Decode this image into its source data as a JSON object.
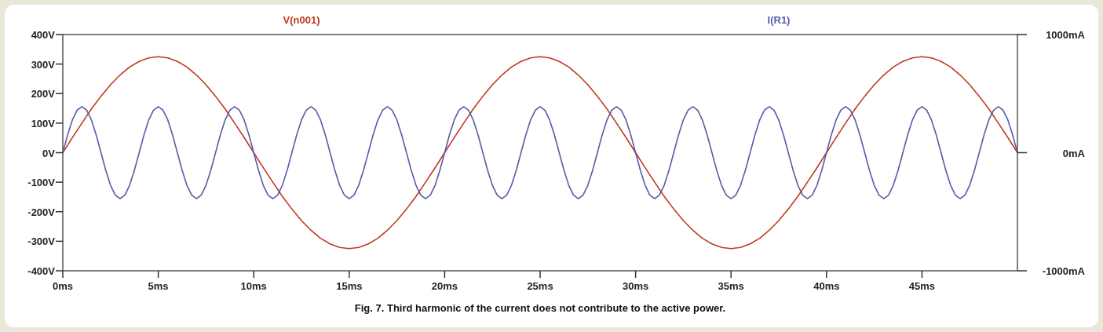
{
  "chart_data": {
    "type": "line",
    "legend": "top",
    "annotations": [
      "Fig. 7. Third harmonic of the current does not contribute to the active power."
    ],
    "xlim": [
      0,
      50
    ],
    "xticks": [
      {
        "value": 0,
        "label": "0ms"
      },
      {
        "value": 5,
        "label": "5ms"
      },
      {
        "value": 10,
        "label": "10ms"
      },
      {
        "value": 15,
        "label": "15ms"
      },
      {
        "value": 20,
        "label": "20ms"
      },
      {
        "value": 25,
        "label": "25ms"
      },
      {
        "value": 30,
        "label": "30ms"
      },
      {
        "value": 35,
        "label": "35ms"
      },
      {
        "value": 40,
        "label": "40ms"
      },
      {
        "value": 45,
        "label": "45ms"
      }
    ],
    "ylim": [
      -400,
      400
    ],
    "yticks": [
      {
        "value": 400,
        "label": "400V"
      },
      {
        "value": 300,
        "label": "300V"
      },
      {
        "value": 200,
        "label": "200V"
      },
      {
        "value": 100,
        "label": "100V"
      },
      {
        "value": 0,
        "label": "0V"
      },
      {
        "value": -100,
        "label": "-100V"
      },
      {
        "value": -200,
        "label": "-200V"
      },
      {
        "value": -300,
        "label": "-300V"
      },
      {
        "value": -400,
        "label": "-400V"
      }
    ],
    "y2lim": [
      -1000,
      1000
    ],
    "y2ticks": [
      {
        "value": 1000,
        "label": "1000mA"
      },
      {
        "value": 0,
        "label": "0mA"
      },
      {
        "value": -1000,
        "label": "-1000mA"
      }
    ],
    "series": [
      {
        "name": "V(n001)",
        "color": "#c0391e",
        "x": [
          0,
          0.5,
          1,
          1.5,
          2,
          2.5,
          3,
          3.5,
          4,
          4.5,
          5,
          5.5,
          6,
          6.5,
          7,
          7.5,
          8,
          8.5,
          9,
          9.5,
          10,
          10.5,
          11,
          11.5,
          12,
          12.5,
          13,
          13.5,
          14,
          14.5,
          15,
          15.5,
          16,
          16.5,
          17,
          17.5,
          18,
          18.5,
          19,
          19.5,
          20,
          20.5,
          21,
          21.5,
          22,
          22.5,
          23,
          23.5,
          24,
          24.5,
          25,
          25.5,
          26,
          26.5,
          27,
          27.5,
          28,
          28.5,
          29,
          29.5,
          30,
          30.5,
          31,
          31.5,
          32,
          32.5,
          33,
          33.5,
          34,
          34.5,
          35,
          35.5,
          36,
          36.5,
          37,
          37.5,
          38,
          38.5,
          39,
          39.5,
          40,
          40.5,
          41,
          41.5,
          42,
          42.5,
          43,
          43.5,
          44,
          44.5,
          45,
          45.5,
          46,
          46.5,
          47,
          47.5,
          48,
          48.5,
          49,
          49.5,
          50
        ],
        "values": [
          0,
          51,
          100,
          148,
          191,
          230,
          263,
          290,
          309,
          321,
          325,
          321,
          309,
          290,
          263,
          230,
          191,
          148,
          100,
          51,
          0,
          -51,
          -100,
          -148,
          -191,
          -230,
          -263,
          -290,
          -309,
          -321,
          -325,
          -321,
          -309,
          -290,
          -263,
          -230,
          -191,
          -148,
          -100,
          -51,
          0,
          51,
          100,
          148,
          191,
          230,
          263,
          290,
          309,
          321,
          325,
          321,
          309,
          290,
          263,
          230,
          191,
          148,
          100,
          51,
          0,
          -51,
          -100,
          -148,
          -191,
          -230,
          -263,
          -290,
          -309,
          -321,
          -325,
          -321,
          -309,
          -290,
          -263,
          -230,
          -191,
          -148,
          -100,
          -51,
          0,
          51,
          100,
          148,
          191,
          230,
          263,
          290,
          309,
          321,
          325,
          321,
          309,
          290,
          263,
          230,
          191,
          148,
          100,
          51,
          0
        ]
      },
      {
        "name": "I(R1)",
        "color": "#5a5aaa",
        "axis": "y2",
        "x": [
          0,
          0.25,
          0.5,
          0.75,
          1,
          1.25,
          1.5,
          1.75,
          2,
          2.25,
          2.5,
          2.75,
          3,
          3.25,
          3.5,
          3.75,
          4,
          4.25,
          4.5,
          4.75,
          5,
          5.25,
          5.5,
          5.75,
          6,
          6.25,
          6.5,
          6.75,
          7,
          7.25,
          7.5,
          7.75,
          8,
          8.25,
          8.5,
          8.75,
          9,
          9.25,
          9.5,
          9.75,
          10,
          10.25,
          10.5,
          10.75,
          11,
          11.25,
          11.5,
          11.75,
          12,
          12.25,
          12.5,
          12.75,
          13,
          13.25,
          13.5,
          13.75,
          14,
          14.25,
          14.5,
          14.75,
          15,
          15.25,
          15.5,
          15.75,
          16,
          16.25,
          16.5,
          16.75,
          17,
          17.25,
          17.5,
          17.75,
          18,
          18.25,
          18.5,
          18.75,
          19,
          19.25,
          19.5,
          19.75,
          20,
          20.25,
          20.5,
          20.75,
          21,
          21.25,
          21.5,
          21.75,
          22,
          22.25,
          22.5,
          22.75,
          23,
          23.25,
          23.5,
          23.75,
          24,
          24.25,
          24.5,
          24.75,
          25,
          25.25,
          25.5,
          25.75,
          26,
          26.25,
          26.5,
          26.75,
          27,
          27.25,
          27.5,
          27.75,
          28,
          28.25,
          28.5,
          28.75,
          29,
          29.25,
          29.5,
          29.75,
          30,
          30.25,
          30.5,
          30.75,
          31,
          31.25,
          31.5,
          31.75,
          32,
          32.25,
          32.5,
          32.75,
          33,
          33.25,
          33.5,
          33.75,
          34,
          34.25,
          34.5,
          34.75,
          35,
          35.25,
          35.5,
          35.75,
          36,
          36.25,
          36.5,
          36.75,
          37,
          37.25,
          37.5,
          37.75,
          38,
          38.25,
          38.5,
          38.75,
          39,
          39.25,
          39.5,
          39.75,
          40,
          40.25,
          40.5,
          40.75,
          41,
          41.25,
          41.5,
          41.75,
          42,
          42.25,
          42.5,
          42.75,
          43,
          43.25,
          43.5,
          43.75,
          44,
          44.25,
          44.5,
          44.75,
          45,
          45.25,
          45.5,
          45.75,
          46,
          46.25,
          46.5,
          46.75,
          47,
          47.25,
          47.5,
          47.75,
          48,
          48.25,
          48.5,
          48.75,
          49,
          49.25,
          49.5,
          49.75,
          50
        ],
        "values": [
          0,
          149,
          276,
          360,
          390,
          360,
          276,
          149,
          0,
          -149,
          -276,
          -360,
          -390,
          -360,
          -276,
          -149,
          0,
          149,
          276,
          360,
          390,
          360,
          276,
          149,
          0,
          -149,
          -276,
          -360,
          -390,
          -360,
          -276,
          -149,
          0,
          149,
          276,
          360,
          390,
          360,
          276,
          149,
          0,
          -149,
          -276,
          -360,
          -390,
          -360,
          -276,
          -149,
          0,
          149,
          276,
          360,
          390,
          360,
          276,
          149,
          0,
          -149,
          -276,
          -360,
          -390,
          -360,
          -276,
          -149,
          0,
          149,
          276,
          360,
          390,
          360,
          276,
          149,
          0,
          -149,
          -276,
          -360,
          -390,
          -360,
          -276,
          -149,
          0,
          149,
          276,
          360,
          390,
          360,
          276,
          149,
          0,
          -149,
          -276,
          -360,
          -390,
          -360,
          -276,
          -149,
          0,
          149,
          276,
          360,
          390,
          360,
          276,
          149,
          0,
          -149,
          -276,
          -360,
          -390,
          -360,
          -276,
          -149,
          0,
          149,
          276,
          360,
          390,
          360,
          276,
          149,
          0,
          -149,
          -276,
          -360,
          -390,
          -360,
          -276,
          -149,
          0,
          149,
          276,
          360,
          390,
          360,
          276,
          149,
          0,
          -149,
          -276,
          -360,
          -390,
          -360,
          -276,
          -149,
          0,
          149,
          276,
          360,
          390,
          360,
          276,
          149,
          0,
          -149,
          -276,
          -360,
          -390,
          -360,
          -276,
          -149,
          0,
          149,
          276,
          360,
          390,
          360,
          276,
          149,
          0,
          -149,
          -276,
          -360,
          -390,
          -360,
          -276,
          -149,
          0,
          149,
          276,
          360,
          390,
          360,
          276,
          149,
          0,
          -149,
          -276,
          -360,
          -390,
          -360,
          -276,
          -149,
          0,
          149,
          276,
          360,
          390,
          360,
          276,
          149,
          0
        ]
      }
    ]
  }
}
